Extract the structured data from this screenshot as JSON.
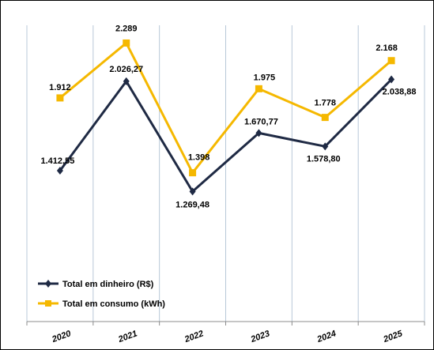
{
  "chart_data": {
    "type": "line",
    "categories": [
      "2020",
      "2021",
      "2022",
      "2023",
      "2024",
      "2025"
    ],
    "series": [
      {
        "name": "Total em dinheiro (R$)",
        "values": [
          1412.55,
          2026.27,
          1269.48,
          1670.77,
          1578.8,
          2038.88
        ],
        "labels": [
          "1.412,55",
          "2.026,27",
          "1.269,48",
          "1.670,77",
          "1.578,80",
          "2.038,88"
        ],
        "color": "#1f2a44",
        "marker": "diamond"
      },
      {
        "name": "Total em consumo (kWh)",
        "values": [
          1912,
          2289,
          1398,
          1975,
          1778,
          2168
        ],
        "labels": [
          "1.912",
          "2.289",
          "1.398",
          "1.975",
          "1.778",
          "2.168"
        ],
        "color": "#f5b800",
        "marker": "square"
      }
    ],
    "grid": "vertical",
    "legend": "bottom-left"
  }
}
